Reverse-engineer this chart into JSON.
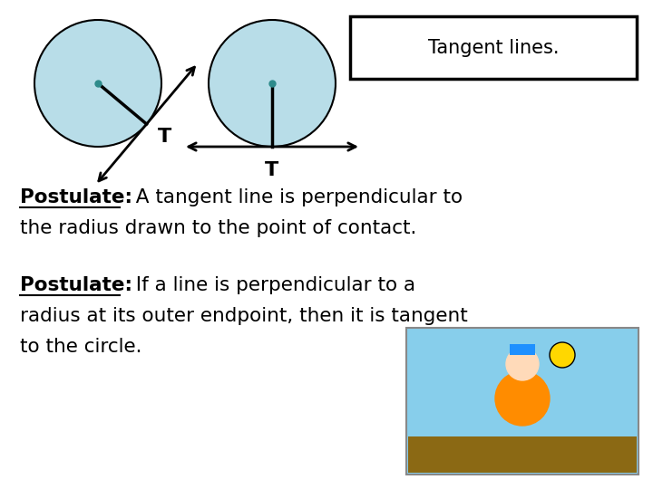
{
  "title": "Tangent lines.",
  "background_color": "#ffffff",
  "circle_fill": "#b8dde8",
  "circle_edge": "#000000",
  "postulate1_bold": "Postulate:",
  "postulate1_rest": "  A tangent line is perpendicular to",
  "postulate1_line2": "the radius drawn to the point of contact.",
  "postulate2_bold": "Postulate:",
  "postulate2_rest": "  If a line is perpendicular to a",
  "postulate2_line2": "radius at its outer endpoint, then it is tangent",
  "postulate2_line3": "to the circle.",
  "font_size": 15.5,
  "title_font_size": 15,
  "teal_dot": "#2e8b8b"
}
